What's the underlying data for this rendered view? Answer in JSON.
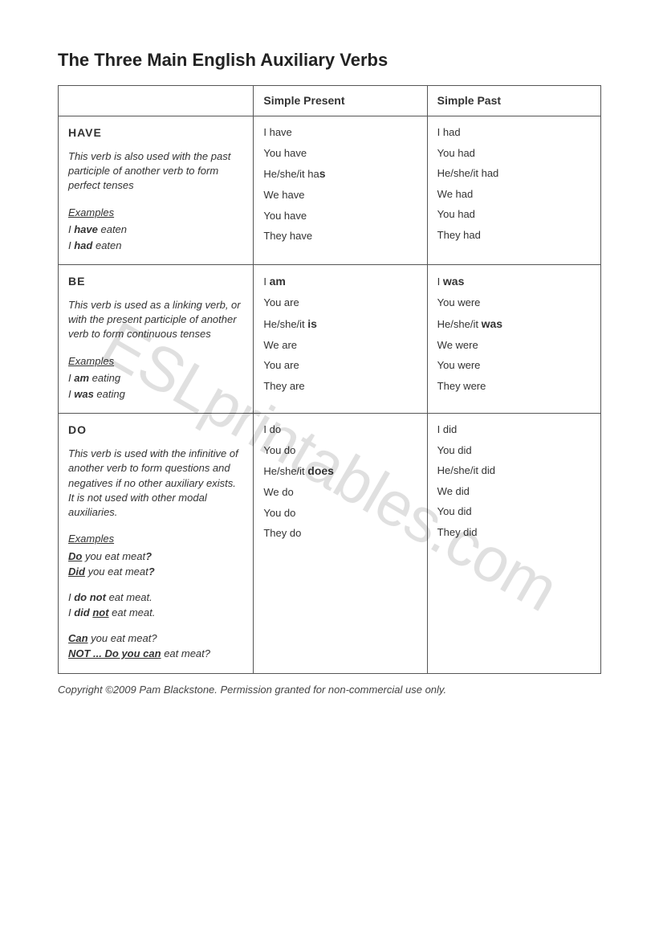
{
  "title": "The Three Main English Auxiliary Verbs",
  "watermark": "ESLprintables.com",
  "headers": {
    "col1": "",
    "col2": "Simple Present",
    "col3": "Simple Past"
  },
  "rows": {
    "have": {
      "name": "HAVE",
      "desc": "This verb is also used with the past participle of another verb to  form perfect tenses",
      "examples_label": "Examples",
      "ex1_pre": "I ",
      "ex1_b": "have",
      "ex1_post": " eaten",
      "ex2_pre": "I ",
      "ex2_b": "had",
      "ex2_post": " eaten",
      "present": {
        "l1": "I have",
        "l2": "You have",
        "l3_pre": "He/she/it ha",
        "l3_b": "s",
        "l4": "We have",
        "l5": "You have",
        "l6": "They have"
      },
      "past": {
        "l1": "I had",
        "l2": "You had",
        "l3": "He/she/it had",
        "l4": "We had",
        "l5": "You had",
        "l6": "They had"
      }
    },
    "be": {
      "name": "BE",
      "desc": "This verb is used as a linking verb, or with the present participle of another verb to form continuous tenses",
      "examples_label": "Examples",
      "ex1_pre": "I ",
      "ex1_b": "am",
      "ex1_post": " eating",
      "ex2_pre": "I ",
      "ex2_b": "was",
      "ex2_post": " eating",
      "present": {
        "l1_pre": "I ",
        "l1_b": "am",
        "l2": "You are",
        "l3_pre": "He/she/it ",
        "l3_b": "is",
        "l4": "We are",
        "l5": "You are",
        "l6": "They are"
      },
      "past": {
        "l1_pre": "I ",
        "l1_b": "was",
        "l2": "You were",
        "l3_pre": "He/she/it ",
        "l3_b": "was",
        "l4": "We were",
        "l5": "You were",
        "l6": "They were"
      }
    },
    "do": {
      "name": "DO",
      "desc": "This verb is used with the infinitive of another verb to form questions and negatives if no other auxiliary exists. It is not used with other modal auxiliaries.",
      "examples_label": "Examples",
      "ex1_b": "Do",
      "ex1_mid": " you eat meat",
      "ex1_q": "?",
      "ex2_b": "Did",
      "ex2_mid": " you eat meat",
      "ex2_q": "?",
      "ex3_pre": "I ",
      "ex3_b": "do not",
      "ex3_post": " eat meat.",
      "ex4_pre": "I ",
      "ex4_b": "did ",
      "ex4_ub": "not",
      "ex4_post": " eat meat.",
      "ex5_b": "Can",
      "ex5_post": " you eat meat?",
      "ex6_b": "NOT ... Do you can",
      "ex6_post": " eat meat?",
      "present": {
        "l1": "I do",
        "l2": "You do",
        "l3_pre": "He/she/it ",
        "l3_b": "does",
        "l4": "We do",
        "l5": "You do",
        "l6": "They do"
      },
      "past": {
        "l1": "I did",
        "l2": "You did",
        "l3": "He/she/it did",
        "l4": "We did",
        "l5": "You did",
        "l6": "They did"
      }
    }
  },
  "copyright": "Copyright ©2009 Pam Blackstone. Permission granted for non-commercial use only."
}
